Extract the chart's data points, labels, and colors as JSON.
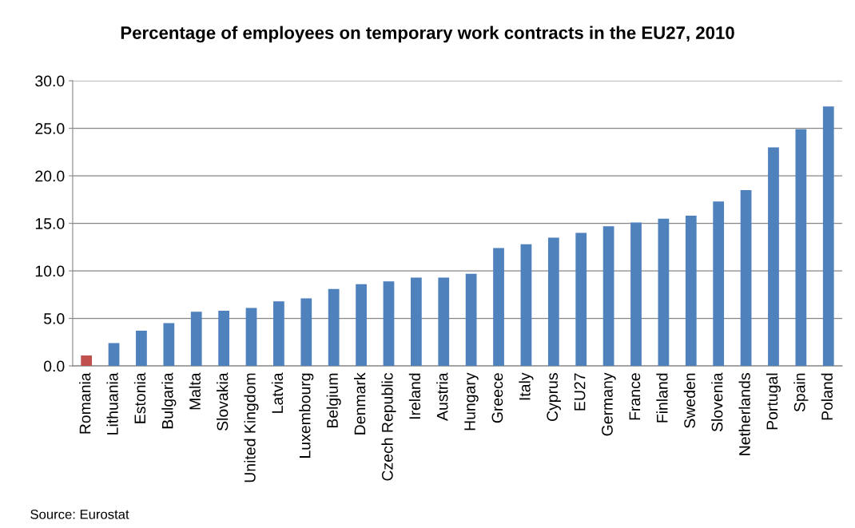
{
  "chart_data": {
    "type": "bar",
    "title": "Percentage of employees on temporary work contracts in the EU27, 2010",
    "categories": [
      "Romania",
      "Lithuania",
      "Estonia",
      "Bulgaria",
      "Malta",
      "Slovakia",
      "United Kingdom",
      "Latvia",
      "Luxembourg",
      "Belgium",
      "Denmark",
      "Czech Republic",
      "Ireland",
      "Austria",
      "Hungary",
      "Greece",
      "Italy",
      "Cyprus",
      "EU27",
      "Germany",
      "France",
      "Finland",
      "Sweden",
      "Slovenia",
      "Netherlands",
      "Portugal",
      "Spain",
      "Poland"
    ],
    "values": [
      1.1,
      2.4,
      3.7,
      4.5,
      5.7,
      5.8,
      6.1,
      6.8,
      7.1,
      8.1,
      8.6,
      8.9,
      9.3,
      9.3,
      9.7,
      12.4,
      12.8,
      13.5,
      14.0,
      14.7,
      15.1,
      15.5,
      15.8,
      17.3,
      18.5,
      23.0,
      24.9,
      27.3
    ],
    "colors": [
      "#c0504d",
      "#4f81bd",
      "#4f81bd",
      "#4f81bd",
      "#4f81bd",
      "#4f81bd",
      "#4f81bd",
      "#4f81bd",
      "#4f81bd",
      "#4f81bd",
      "#4f81bd",
      "#4f81bd",
      "#4f81bd",
      "#4f81bd",
      "#4f81bd",
      "#4f81bd",
      "#4f81bd",
      "#4f81bd",
      "#4f81bd",
      "#4f81bd",
      "#4f81bd",
      "#4f81bd",
      "#4f81bd",
      "#4f81bd",
      "#4f81bd",
      "#4f81bd",
      "#4f81bd",
      "#4f81bd"
    ],
    "ylim": [
      0,
      30
    ],
    "yticks": [
      {
        "value": 0,
        "label": "0.0"
      },
      {
        "value": 5,
        "label": "5.0"
      },
      {
        "value": 10,
        "label": "10.0"
      },
      {
        "value": 15,
        "label": "15.0"
      },
      {
        "value": 20,
        "label": "20.0"
      },
      {
        "value": 25,
        "label": "25.0"
      },
      {
        "value": 30,
        "label": "30.0"
      }
    ],
    "grid": "y",
    "legend": false,
    "annotations": [
      "Source: Eurostat"
    ]
  }
}
